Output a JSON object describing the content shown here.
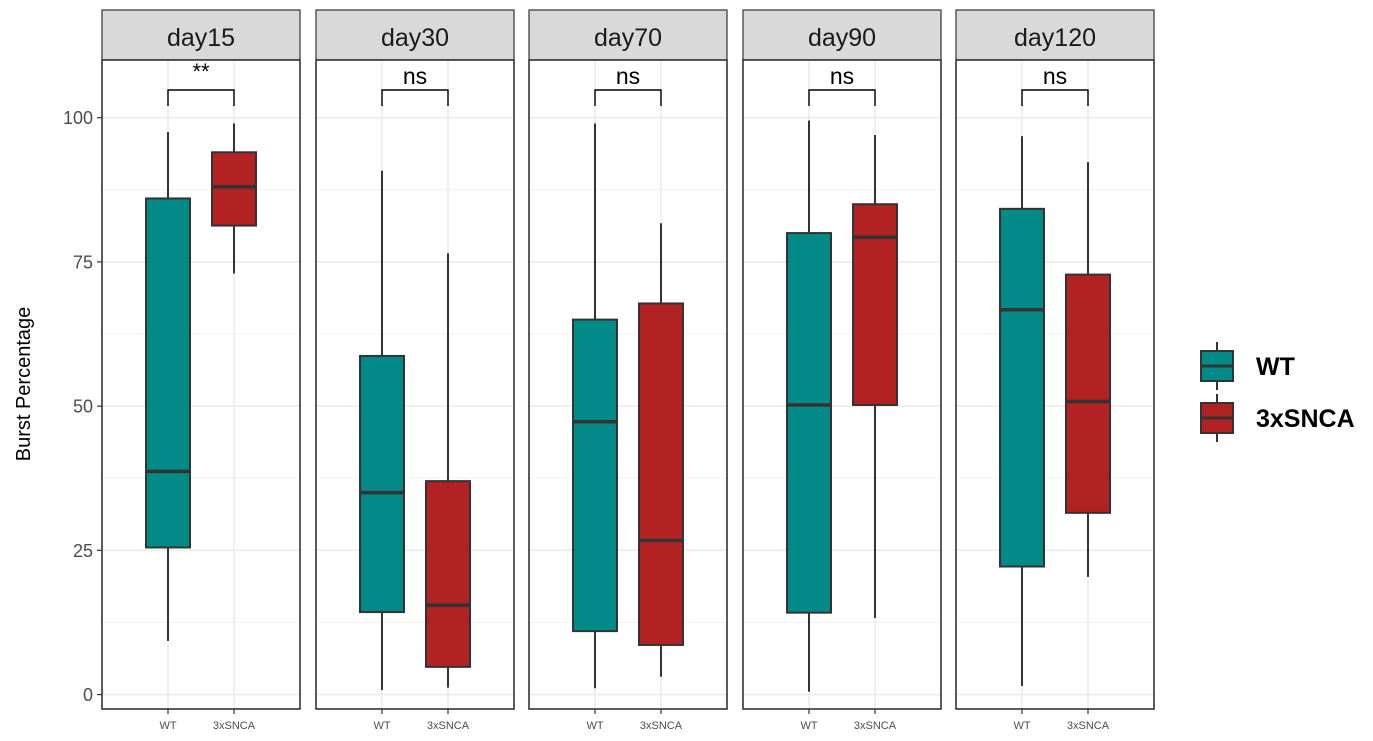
{
  "chart_data": {
    "type": "box",
    "ylabel": "Burst Percentage",
    "xlabel": "",
    "ylim": [
      -2.5,
      110
    ],
    "yticks": [
      0,
      25,
      50,
      75,
      100
    ],
    "ytick_labels": [
      "0",
      "25",
      "50",
      "75",
      "100"
    ],
    "grid": true,
    "legend_position": "right",
    "groups": [
      "WT",
      "3xSNCA"
    ],
    "colors": {
      "WT": "#028a89",
      "3xSNCA": "#b22222"
    },
    "panels": [
      {
        "label": "day15",
        "significance": "**",
        "boxes": [
          {
            "group": "WT",
            "min": 9.3,
            "q1": 25.5,
            "median": 38.7,
            "q3": 86.0,
            "max": 97.5
          },
          {
            "group": "3xSNCA",
            "min": 73.0,
            "q1": 81.3,
            "median": 88.0,
            "q3": 94.0,
            "max": 99.0
          }
        ]
      },
      {
        "label": "day30",
        "significance": "ns",
        "boxes": [
          {
            "group": "WT",
            "min": 0.8,
            "q1": 14.3,
            "median": 35.0,
            "q3": 58.7,
            "max": 90.8
          },
          {
            "group": "3xSNCA",
            "min": 1.2,
            "q1": 4.8,
            "median": 15.5,
            "q3": 37.0,
            "max": 76.5
          }
        ]
      },
      {
        "label": "day70",
        "significance": "ns",
        "boxes": [
          {
            "group": "WT",
            "min": 1.1,
            "q1": 11.0,
            "median": 47.3,
            "q3": 65.0,
            "max": 99.0
          },
          {
            "group": "3xSNCA",
            "min": 3.1,
            "q1": 8.6,
            "median": 26.7,
            "q3": 67.8,
            "max": 81.7
          }
        ]
      },
      {
        "label": "day90",
        "significance": "ns",
        "boxes": [
          {
            "group": "WT",
            "min": 0.5,
            "q1": 14.2,
            "median": 50.2,
            "q3": 80.0,
            "max": 99.5
          },
          {
            "group": "3xSNCA",
            "min": 13.3,
            "q1": 50.2,
            "median": 79.3,
            "q3": 85.0,
            "max": 97.0
          }
        ]
      },
      {
        "label": "day120",
        "significance": "ns",
        "boxes": [
          {
            "group": "WT",
            "min": 1.5,
            "q1": 22.2,
            "median": 66.7,
            "q3": 84.2,
            "max": 96.8
          },
          {
            "group": "3xSNCA",
            "min": 20.4,
            "q1": 31.5,
            "median": 50.8,
            "q3": 72.8,
            "max": 92.3
          }
        ]
      }
    ]
  }
}
